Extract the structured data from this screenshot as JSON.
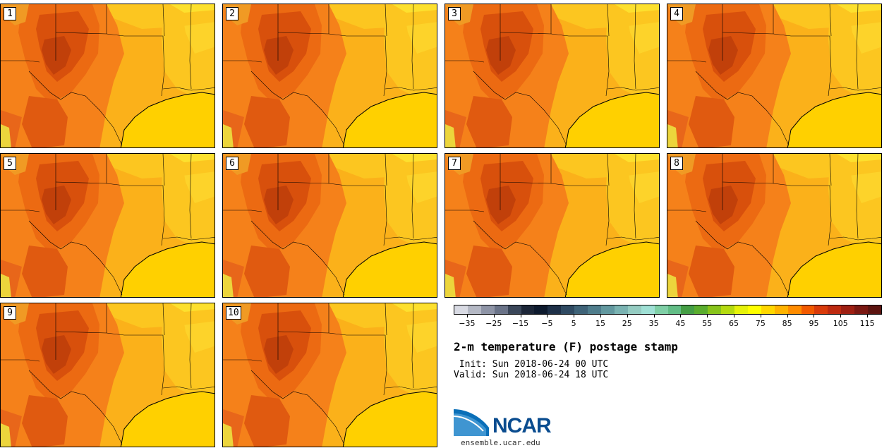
{
  "panels": [
    {
      "label": "1"
    },
    {
      "label": "2"
    },
    {
      "label": "3"
    },
    {
      "label": "4"
    },
    {
      "label": "5"
    },
    {
      "label": "6"
    },
    {
      "label": "7"
    },
    {
      "label": "8"
    },
    {
      "label": "9"
    },
    {
      "label": "10"
    }
  ],
  "colorbar": {
    "colors": [
      "#d8dae3",
      "#b4b8c4",
      "#8e94a6",
      "#6a7388",
      "#3a4659",
      "#1c2638",
      "#0d1a2e",
      "#1e3048",
      "#2f4a62",
      "#3f6378",
      "#4f7d8c",
      "#62989f",
      "#7ab3b2",
      "#95ccc2",
      "#9fe0d5",
      "#7fcfa6",
      "#62bd86",
      "#449e45",
      "#5aad2e",
      "#88c41b",
      "#b4da10",
      "#e6f20a",
      "#ffff00",
      "#ffd700",
      "#ffb300",
      "#ff8c00",
      "#f25a00",
      "#d93b0b",
      "#bd2a10",
      "#9e1f12",
      "#7a1812",
      "#5c1410"
    ],
    "tick_labels": [
      "−35",
      "−25",
      "−15",
      "−5",
      "5",
      "15",
      "25",
      "35",
      "45",
      "55",
      "65",
      "75",
      "85",
      "95",
      "105",
      "115"
    ]
  },
  "title": "2-m temperature (F) postage stamp",
  "init": " Init: Sun 2018-06-24 00 UTC",
  "valid": "Valid: Sun 2018-06-24 18 UTC",
  "logo": {
    "text": "NCAR",
    "site": "ensemble.ucar.edu"
  }
}
